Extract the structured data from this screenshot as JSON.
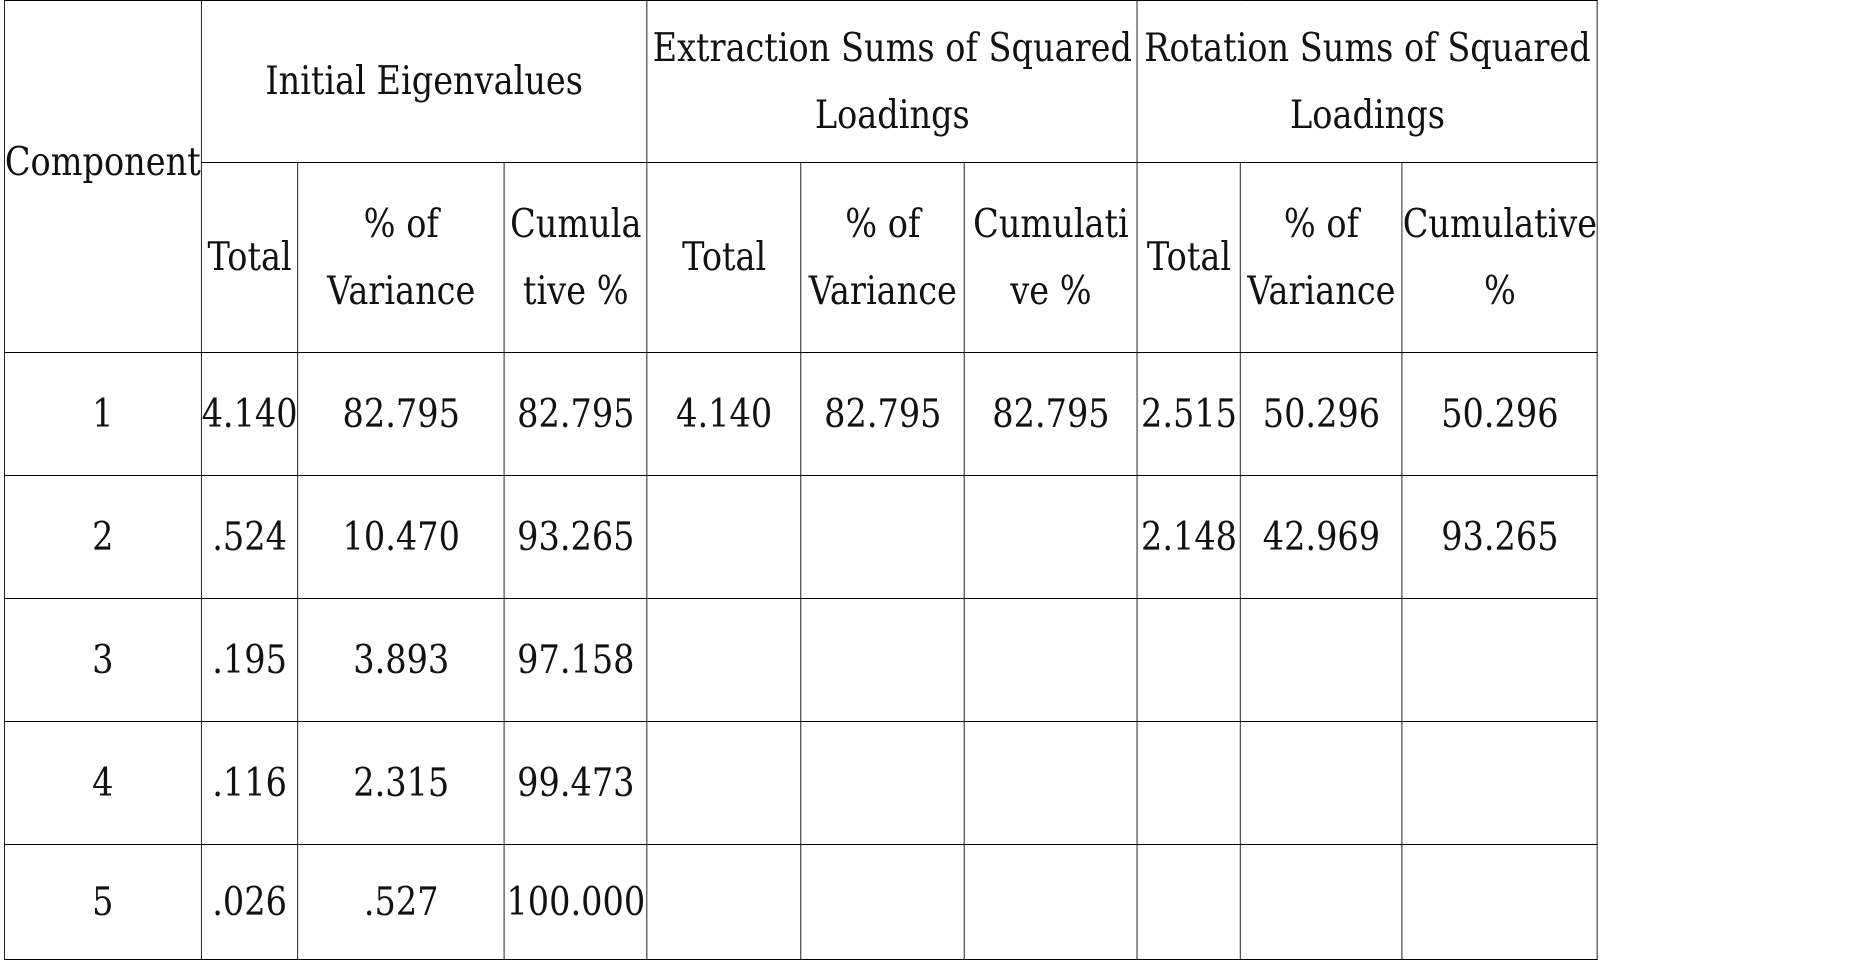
{
  "table": {
    "component_header": "Component",
    "groups": [
      {
        "label": "Initial Eigenvalues"
      },
      {
        "label": "Extraction Sums of Squared Loadings"
      },
      {
        "label": "Rotation Sums of Squared Loadings"
      }
    ],
    "subheaders": [
      {
        "total": "Total",
        "pct_variance": "% of Variance",
        "cumulative": "Cumulative %"
      },
      {
        "total": "Total",
        "pct_variance": "% of Variance",
        "cumulative": "Cumulative %"
      },
      {
        "total": "Total",
        "pct_variance": "% of Variance",
        "cumulative": "Cumulative %"
      }
    ],
    "rows": [
      {
        "component": "1",
        "initial": {
          "total": "4.140",
          "pct": "82.795",
          "cum": "82.795"
        },
        "extraction": {
          "total": "4.140",
          "pct": "82.795",
          "cum": "82.795"
        },
        "rotation": {
          "total": "2.515",
          "pct": "50.296",
          "cum": "50.296"
        }
      },
      {
        "component": "2",
        "initial": {
          "total": ".524",
          "pct": "10.470",
          "cum": "93.265"
        },
        "extraction": {
          "total": "",
          "pct": "",
          "cum": ""
        },
        "rotation": {
          "total": "2.148",
          "pct": "42.969",
          "cum": "93.265"
        }
      },
      {
        "component": "3",
        "initial": {
          "total": ".195",
          "pct": "3.893",
          "cum": "97.158"
        },
        "extraction": {
          "total": "",
          "pct": "",
          "cum": ""
        },
        "rotation": {
          "total": "",
          "pct": "",
          "cum": ""
        }
      },
      {
        "component": "4",
        "initial": {
          "total": ".116",
          "pct": "2.315",
          "cum": "99.473"
        },
        "extraction": {
          "total": "",
          "pct": "",
          "cum": ""
        },
        "rotation": {
          "total": "",
          "pct": "",
          "cum": ""
        }
      },
      {
        "component": "5",
        "initial": {
          "total": ".026",
          "pct": ".527",
          "cum": "100.000"
        },
        "extraction": {
          "total": "",
          "pct": "",
          "cum": ""
        },
        "rotation": {
          "total": "",
          "pct": "",
          "cum": ""
        }
      }
    ]
  }
}
